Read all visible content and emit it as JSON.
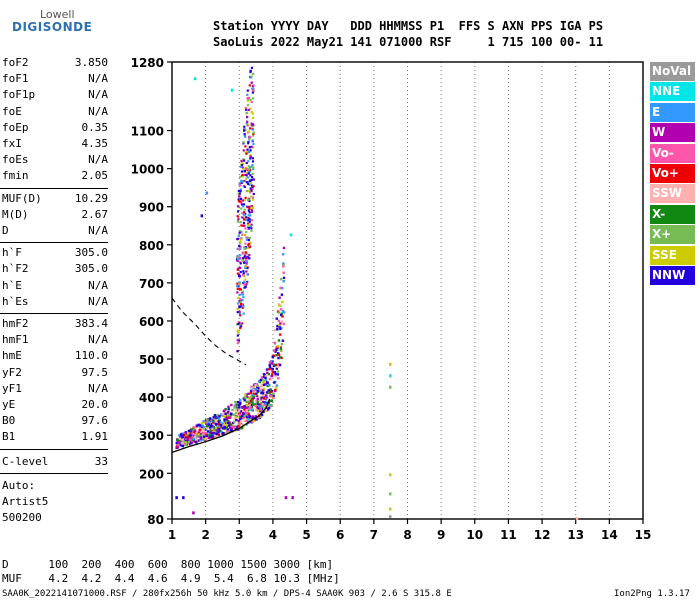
{
  "logo": {
    "top": "Lowell",
    "main": "DIGISONDE"
  },
  "header": {
    "line1": "Station YYYY DAY   DDD HHMMSS P1  FFS S AXN PPS IGA PS",
    "line2": "SaoLuis 2022 May21 141 071000 RSF     1 715 100 00- 11"
  },
  "params_group1": [
    {
      "name": "foF2",
      "value": "3.850"
    },
    {
      "name": "foF1",
      "value": "N/A"
    },
    {
      "name": "foF1p",
      "value": "N/A"
    },
    {
      "name": "foE",
      "value": "N/A"
    },
    {
      "name": "foEp",
      "value": "0.35"
    },
    {
      "name": "fxI",
      "value": "4.35"
    },
    {
      "name": "foEs",
      "value": "N/A"
    },
    {
      "name": "fmin",
      "value": "2.05"
    }
  ],
  "params_group2": [
    {
      "name": "MUF(D)",
      "value": "10.29"
    },
    {
      "name": "M(D)",
      "value": "2.67"
    },
    {
      "name": "D",
      "value": "N/A"
    }
  ],
  "params_group3": [
    {
      "name": "h`F",
      "value": "305.0"
    },
    {
      "name": "h`F2",
      "value": "305.0"
    },
    {
      "name": "h`E",
      "value": "N/A"
    },
    {
      "name": "h`Es",
      "value": "N/A"
    }
  ],
  "params_group4": [
    {
      "name": "hmF2",
      "value": "383.4"
    },
    {
      "name": "hmF1",
      "value": "N/A"
    },
    {
      "name": "hmE",
      "value": "110.0"
    },
    {
      "name": "yF2",
      "value": "97.5"
    },
    {
      "name": "yF1",
      "value": "N/A"
    },
    {
      "name": "yE",
      "value": "20.0"
    },
    {
      "name": "B0",
      "value": "97.6"
    },
    {
      "name": "B1",
      "value": "1.91"
    }
  ],
  "clevel": {
    "name": "C-level",
    "value": "33"
  },
  "auto": {
    "line1": "Auto:",
    "line2": "Artist5",
    "line3": "500200"
  },
  "legend": [
    {
      "label": "NoVal",
      "color": "#9a9a9a"
    },
    {
      "label": "NNE",
      "color": "#00e6e6"
    },
    {
      "label": "E",
      "color": "#3399ff"
    },
    {
      "label": "W",
      "color": "#b000b0"
    },
    {
      "label": "Vo-",
      "color": "#ff55aa"
    },
    {
      "label": "Vo+",
      "color": "#ee0000"
    },
    {
      "label": "SSW",
      "color": "#ffb0b0"
    },
    {
      "label": "X-",
      "color": "#118811"
    },
    {
      "label": "X+",
      "color": "#77bb55"
    },
    {
      "label": "SSE",
      "color": "#cccc00"
    },
    {
      "label": "NNW",
      "color": "#2200dd"
    }
  ],
  "footer": {
    "d_line": "D      100  200  400  600  800 1000 1500 3000 [km]",
    "muf_line": "MUF    4.2  4.2  4.4  4.6  4.9  5.4  6.8 10.3 [MHz]",
    "file_line": "SAA0K_2022141071000.RSF / 280fx256h 50 kHz 5.0 km / DPS-4 SAA0K 903 / 2.6 S 315.8 E",
    "version": "Ion2Png 1.3.17"
  },
  "chart_data": {
    "type": "scatter",
    "xlim": [
      1,
      15
    ],
    "ylim": [
      80,
      1280
    ],
    "xticks": [
      1,
      2,
      3,
      4,
      5,
      6,
      7,
      8,
      9,
      10,
      11,
      12,
      13,
      14,
      15
    ],
    "yticks": [
      80,
      200,
      300,
      400,
      500,
      600,
      700,
      800,
      900,
      1000,
      1100,
      1280
    ],
    "xgrid": true,
    "ygrid": false,
    "trace_o_solid": {
      "x": [
        1.0,
        1.5,
        2.0,
        2.5,
        3.0,
        3.3,
        3.6,
        3.8,
        3.9
      ],
      "y": [
        255,
        270,
        283,
        298,
        318,
        335,
        352,
        372,
        395
      ]
    },
    "profile_dashed": {
      "x": [
        1.0,
        1.3,
        1.7,
        2.0,
        2.3,
        2.6,
        2.8,
        3.0,
        3.2
      ],
      "y": [
        660,
        625,
        590,
        560,
        535,
        515,
        505,
        495,
        485
      ]
    },
    "echo_band": {
      "x": [
        1.1,
        1.5,
        2.0,
        2.5,
        3.0,
        3.3,
        3.6,
        3.8,
        3.95,
        4.05,
        4.15,
        4.25,
        4.3
      ],
      "y_low": [
        270,
        280,
        292,
        305,
        320,
        335,
        350,
        368,
        385,
        420,
        460,
        520,
        600
      ],
      "y_high": [
        300,
        320,
        345,
        370,
        400,
        430,
        450,
        480,
        520,
        600,
        680,
        760,
        900
      ]
    },
    "spread_column": {
      "x": [
        2.9,
        3.0,
        3.1,
        3.2,
        3.3,
        3.4
      ],
      "y_low": [
        500,
        560,
        620,
        700,
        800,
        900
      ],
      "y_high": [
        900,
        1000,
        1100,
        1200,
        1260,
        1280
      ]
    },
    "isolated_echoes": [
      {
        "x": 7.45,
        "y": 430,
        "color": "#77bb55"
      },
      {
        "x": 7.45,
        "y": 460,
        "color": "#00e6e6"
      },
      {
        "x": 7.45,
        "y": 490,
        "color": "#cccc00"
      },
      {
        "x": 7.45,
        "y": 200,
        "color": "#cccc00"
      },
      {
        "x": 7.45,
        "y": 150,
        "color": "#77bb55"
      },
      {
        "x": 7.45,
        "y": 110,
        "color": "#cccc00"
      },
      {
        "x": 7.45,
        "y": 90,
        "color": "#9a9a9a"
      },
      {
        "x": 13.0,
        "y": 85,
        "color": "#ffb0b0"
      },
      {
        "x": 1.1,
        "y": 140,
        "color": "#2200dd"
      },
      {
        "x": 1.3,
        "y": 140,
        "color": "#2200dd"
      },
      {
        "x": 1.6,
        "y": 100,
        "color": "#b000b0"
      },
      {
        "x": 4.35,
        "y": 140,
        "color": "#b000b0"
      },
      {
        "x": 4.55,
        "y": 140,
        "color": "#b000b0"
      },
      {
        "x": 4.5,
        "y": 830,
        "color": "#00e6e6"
      },
      {
        "x": 2.75,
        "y": 1210,
        "color": "#00e6e6"
      },
      {
        "x": 1.65,
        "y": 1240,
        "color": "#00e6e6"
      },
      {
        "x": 1.85,
        "y": 880,
        "color": "#2200dd"
      },
      {
        "x": 2.0,
        "y": 940,
        "color": "#3399ff"
      }
    ]
  }
}
